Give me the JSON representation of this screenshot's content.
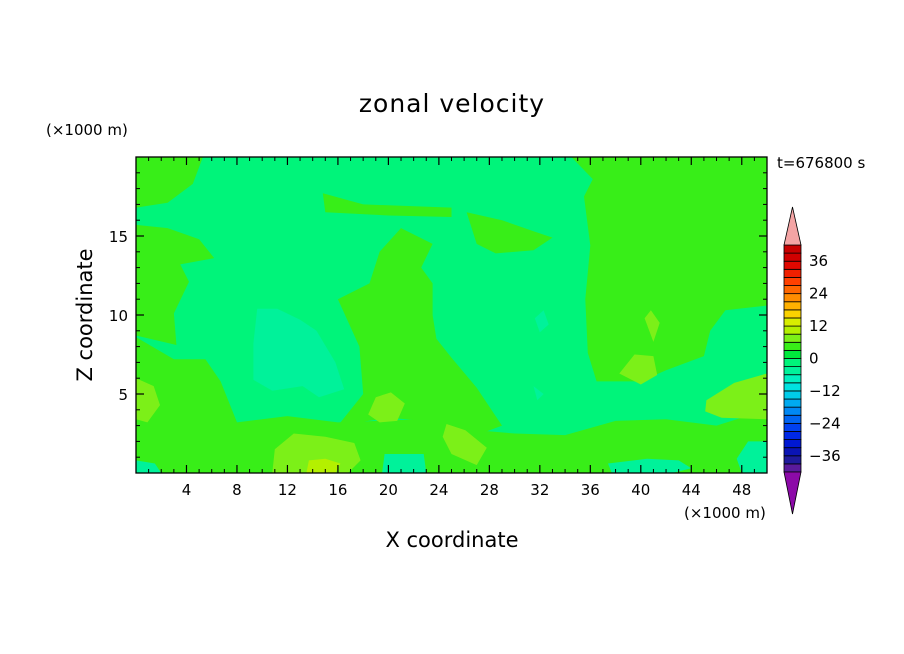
{
  "chart_data": {
    "type": "heatmap",
    "title": "zonal velocity",
    "xlabel": "X coordinate",
    "ylabel": "Z coordinate",
    "x_unit": "(×1000 m)",
    "y_unit": "(×1000 m)",
    "time_label": "t=676800 s",
    "xlim": [
      0,
      50
    ],
    "ylim": [
      0,
      20
    ],
    "x_ticks": [
      4,
      8,
      12,
      16,
      20,
      24,
      28,
      32,
      36,
      40,
      44,
      48
    ],
    "y_ticks": [
      5,
      10,
      15
    ],
    "colorbar": {
      "levels": [
        -42,
        -39,
        -36,
        -33,
        -30,
        -27,
        -24,
        -21,
        -18,
        -15,
        -12,
        -9,
        -6,
        -3,
        0,
        3,
        6,
        9,
        12,
        15,
        18,
        21,
        24,
        27,
        30,
        33,
        36,
        39,
        42
      ],
      "colors": [
        "#5a1a9c",
        "#1f1a9c",
        "#0a14b4",
        "#0018d2",
        "#0028e6",
        "#0040f0",
        "#0064f2",
        "#0088f4",
        "#00aaf0",
        "#00ccea",
        "#00e2e0",
        "#00f0c0",
        "#00f29a",
        "#00f47a",
        "#00ea3c",
        "#38ee18",
        "#7cf018",
        "#b4f000",
        "#d8ee00",
        "#fad200",
        "#ffb000",
        "#ff8c00",
        "#ff6600",
        "#ff4000",
        "#f02000",
        "#e00800",
        "#d00000",
        "#c80000"
      ],
      "labels": [
        "36",
        "24",
        "12",
        "0",
        "−12",
        "−24",
        "−36"
      ],
      "label_values": [
        36,
        24,
        12,
        0,
        -12,
        -24,
        -36
      ],
      "over_color": "#f4a4a4",
      "under_color": "#8c0aa8"
    },
    "field": {
      "background_value": -3,
      "regions": [
        {
          "value": 3,
          "points": [
            [
              0,
              20
            ],
            [
              0,
              16.8
            ],
            [
              2.5,
              17.1
            ],
            [
              4.5,
              18.3
            ],
            [
              5.3,
              20
            ]
          ]
        },
        {
          "value": 3,
          "points": [
            [
              0,
              15.7
            ],
            [
              2.5,
              15.5
            ],
            [
              5,
              14.8
            ],
            [
              6.2,
              13.6
            ],
            [
              3.5,
              13.2
            ],
            [
              4.2,
              12.1
            ],
            [
              3,
              10.1
            ],
            [
              3.2,
              8.1
            ],
            [
              0,
              8.7
            ]
          ]
        },
        {
          "value": 3,
          "points": [
            [
              14.8,
              17.7
            ],
            [
              18,
              17
            ],
            [
              25,
              16.8
            ],
            [
              25,
              16.2
            ],
            [
              20,
              16.3
            ],
            [
              15,
              16.5
            ]
          ]
        },
        {
          "value": 3,
          "points": [
            [
              26.2,
              16.5
            ],
            [
              29,
              16
            ],
            [
              31.5,
              15.3
            ],
            [
              33,
              14.9
            ],
            [
              31.5,
              14.1
            ],
            [
              28.5,
              13.9
            ],
            [
              27,
              14.5
            ]
          ]
        },
        {
          "value": 3,
          "points": [
            [
              16,
              3
            ],
            [
              18,
              5
            ],
            [
              17.7,
              8
            ],
            [
              16,
              11
            ],
            [
              18.5,
              12
            ],
            [
              19.3,
              14
            ],
            [
              21,
              15.5
            ],
            [
              23.5,
              14.5
            ],
            [
              22.6,
              13
            ],
            [
              23.5,
              12
            ],
            [
              23.5,
              10
            ],
            [
              23.8,
              8.5
            ],
            [
              25,
              7.3
            ],
            [
              27,
              5.4
            ],
            [
              29,
              3
            ],
            [
              27,
              2.4
            ],
            [
              23,
              3.3
            ],
            [
              20,
              3.5
            ]
          ]
        },
        {
          "value": 3,
          "points": [
            [
              34.5,
              20
            ],
            [
              36.8,
              20
            ],
            [
              39,
              20
            ],
            [
              50,
              20
            ],
            [
              50,
              10.6
            ],
            [
              46.7,
              10.3
            ],
            [
              45.5,
              9
            ],
            [
              45,
              7.4
            ],
            [
              42,
              6.5
            ],
            [
              40,
              5.8
            ],
            [
              36.5,
              5.8
            ],
            [
              35.8,
              7.6
            ],
            [
              35.6,
              11
            ],
            [
              36,
              14.4
            ],
            [
              35.5,
              17.5
            ],
            [
              36.2,
              18.6
            ]
          ]
        },
        {
          "value": 3,
          "points": [
            [
              0,
              8.6
            ],
            [
              3,
              7.2
            ],
            [
              5.5,
              7.2
            ],
            [
              6.7,
              5.8
            ],
            [
              8,
              3.2
            ],
            [
              12,
              3.6
            ],
            [
              16,
              3.2
            ],
            [
              22.5,
              3.4
            ],
            [
              27,
              2.7
            ],
            [
              30,
              2.5
            ],
            [
              34,
              2.4
            ],
            [
              38,
              3.3
            ],
            [
              42,
              3.4
            ],
            [
              46,
              3
            ],
            [
              50,
              4
            ],
            [
              50,
              0
            ],
            [
              0,
              0
            ]
          ]
        },
        {
          "value": 3,
          "points": [
            [
              9.5,
              1
            ],
            [
              13,
              2.7
            ],
            [
              15,
              2.2
            ],
            [
              17.5,
              1.9
            ],
            [
              17,
              0.8
            ]
          ]
        },
        {
          "value": 6,
          "points": [
            [
              0,
              6
            ],
            [
              1.4,
              5.5
            ],
            [
              1.9,
              4.3
            ],
            [
              0.9,
              3.2
            ],
            [
              0,
              3.4
            ]
          ]
        },
        {
          "value": 6,
          "points": [
            [
              18.4,
              3.7
            ],
            [
              19,
              4.8
            ],
            [
              20.2,
              5.1
            ],
            [
              21.3,
              4.4
            ],
            [
              20.7,
              3.3
            ],
            [
              19.3,
              3.2
            ]
          ]
        },
        {
          "value": 6,
          "points": [
            [
              38.3,
              6.3
            ],
            [
              39.5,
              7.5
            ],
            [
              41,
              7.4
            ],
            [
              41.3,
              6.2
            ],
            [
              40,
              5.6
            ]
          ]
        },
        {
          "value": 6,
          "points": [
            [
              45.2,
              4.6
            ],
            [
              47.4,
              5.7
            ],
            [
              50,
              6.3
            ],
            [
              50,
              3.4
            ],
            [
              46.4,
              3.5
            ],
            [
              45.1,
              3.9
            ]
          ]
        },
        {
          "value": 6,
          "points": [
            [
              40.3,
              9.8
            ],
            [
              40.8,
              10.3
            ],
            [
              41.5,
              9.5
            ],
            [
              41,
              8.3
            ]
          ]
        },
        {
          "value": 6,
          "points": [
            [
              12.5,
              2.5
            ],
            [
              15,
              2.3
            ],
            [
              17.3,
              1.9
            ],
            [
              17.8,
              0.8
            ],
            [
              16.8,
              0
            ],
            [
              10.8,
              0
            ],
            [
              11,
              1.5
            ]
          ]
        },
        {
          "value": 6,
          "points": [
            [
              24.6,
              3.1
            ],
            [
              26.1,
              2.7
            ],
            [
              27.8,
              1.6
            ],
            [
              27,
              0.5
            ],
            [
              25,
              1.2
            ],
            [
              24.3,
              2.3
            ]
          ]
        },
        {
          "value": 9,
          "points": [
            [
              13.7,
              0.8
            ],
            [
              15,
              0.9
            ],
            [
              16.2,
              0.6
            ],
            [
              15.8,
              0
            ],
            [
              13.5,
              0
            ]
          ]
        },
        {
          "value": -6,
          "points": [
            [
              9.3,
              8.2
            ],
            [
              9.6,
              10.4
            ],
            [
              11.2,
              10.4
            ],
            [
              13,
              9.7
            ],
            [
              14.3,
              9
            ],
            [
              15.8,
              7
            ],
            [
              16.5,
              5.3
            ],
            [
              14.5,
              4.8
            ],
            [
              13.2,
              5.5
            ],
            [
              10.8,
              5.2
            ],
            [
              9.3,
              5.9
            ]
          ]
        },
        {
          "value": -6,
          "points": [
            [
              11.9,
              7.3
            ],
            [
              13.5,
              7.6
            ],
            [
              14.5,
              7.2
            ],
            [
              14,
              6.8
            ],
            [
              12.5,
              6.9
            ]
          ]
        },
        {
          "value": -6,
          "points": [
            [
              37.4,
              0.6
            ],
            [
              40.5,
              0.9
            ],
            [
              43,
              0.8
            ],
            [
              44,
              0.3
            ],
            [
              42.5,
              0
            ],
            [
              37.7,
              0
            ]
          ]
        },
        {
          "value": -6,
          "points": [
            [
              47.6,
              0.9
            ],
            [
              48.5,
              2
            ],
            [
              50,
              2
            ],
            [
              50,
              0
            ],
            [
              48,
              0
            ]
          ]
        },
        {
          "value": -6,
          "points": [
            [
              0,
              0.8
            ],
            [
              1.5,
              0.6
            ],
            [
              2,
              0
            ],
            [
              0,
              0
            ]
          ]
        },
        {
          "value": -6,
          "points": [
            [
              19.7,
              1.2
            ],
            [
              22.8,
              1.2
            ],
            [
              23,
              0
            ],
            [
              19.5,
              0
            ]
          ]
        },
        {
          "value": -6,
          "points": [
            [
              31.6,
              9.8
            ],
            [
              32.3,
              10.3
            ],
            [
              32.7,
              9.4
            ],
            [
              32,
              8.9
            ]
          ]
        },
        {
          "value": -6,
          "points": [
            [
              31.5,
              5.5
            ],
            [
              32.3,
              5
            ],
            [
              31.8,
              4.6
            ]
          ]
        }
      ]
    }
  }
}
